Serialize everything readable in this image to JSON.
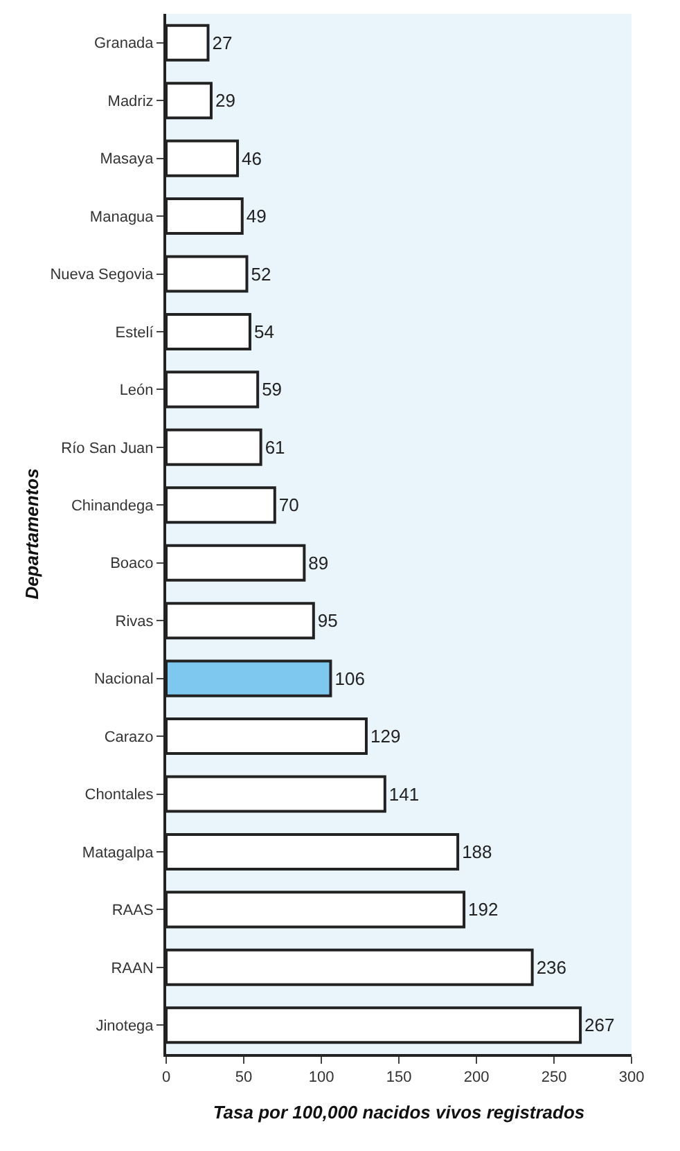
{
  "chart_data": {
    "type": "bar",
    "orientation": "horizontal",
    "xlabel": "Tasa por 100,000 nacidos vivos registrados",
    "ylabel": "Departamentos",
    "categories": [
      "Granada",
      "Madriz",
      "Masaya",
      "Managua",
      "Nueva Segovia",
      "Estelí",
      "León",
      "Río San Juan",
      "Chinandega",
      "Boaco",
      "Rivas",
      "Nacional",
      "Carazo",
      "Chontales",
      "Matagalpa",
      "RAAS",
      "RAAN",
      "Jinotega"
    ],
    "values": [
      27,
      29,
      46,
      49,
      52,
      54,
      59,
      61,
      70,
      89,
      95,
      106,
      129,
      141,
      188,
      192,
      236,
      267
    ],
    "colors": [
      "#ffffff",
      "#ffffff",
      "#ffffff",
      "#ffffff",
      "#ffffff",
      "#ffffff",
      "#ffffff",
      "#ffffff",
      "#ffffff",
      "#ffffff",
      "#ffffff",
      "#7ec8f0",
      "#ffffff",
      "#ffffff",
      "#ffffff",
      "#ffffff",
      "#ffffff",
      "#ffffff"
    ],
    "xlim": [
      0,
      300
    ],
    "xticks": [
      0,
      50,
      100,
      150,
      200,
      250,
      300
    ],
    "data_labels": true,
    "grid": false,
    "legend": false
  }
}
